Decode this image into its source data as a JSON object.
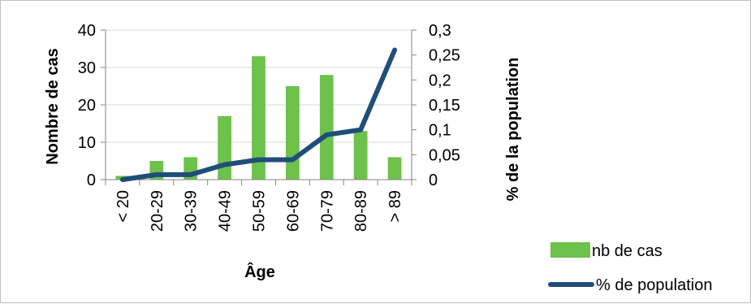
{
  "chart_data": {
    "type": "bar",
    "categories": [
      "< 20",
      "20-29",
      "30-39",
      "40-49",
      "50-59",
      "60-69",
      "70-79",
      "80-89",
      "> 89"
    ],
    "xlabel": "Âge",
    "ylabel": "Nombre de cas",
    "y2label": "% de la population",
    "ylim": [
      0,
      40
    ],
    "y2lim": [
      0,
      0.3
    ],
    "yticks": [
      "0",
      "10",
      "20",
      "30",
      "40"
    ],
    "y2ticks": [
      "0",
      "0,05",
      "0,1",
      "0,15",
      "0,2",
      "0,25",
      "0,3"
    ],
    "series": [
      {
        "name": "nb de cas",
        "type": "bar",
        "axis": "left",
        "color": "#6cc24a",
        "values": [
          1,
          5,
          6,
          17,
          33,
          25,
          28,
          13,
          6
        ]
      },
      {
        "name": "% de population",
        "type": "line",
        "axis": "right",
        "color": "#1f4e79",
        "values": [
          0,
          0.01,
          0.01,
          0.03,
          0.04,
          0.04,
          0.09,
          0.1,
          0.26
        ]
      }
    ],
    "grid": true,
    "legend": "right"
  }
}
